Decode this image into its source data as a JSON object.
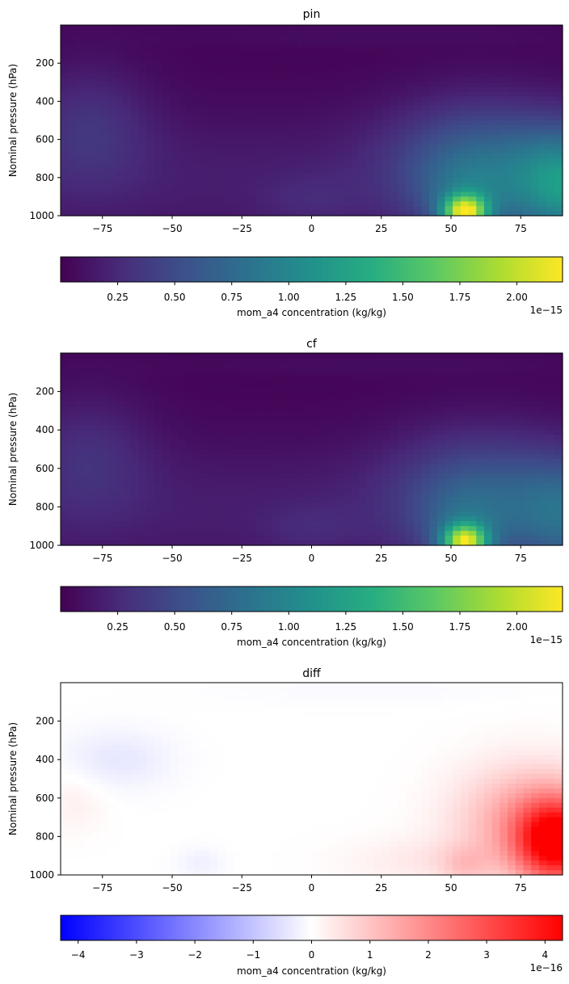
{
  "chart_data": [
    {
      "type": "heatmap",
      "title": "pin",
      "ylabel": "Nominal pressure (hPa)",
      "xlim": [
        -90,
        90
      ],
      "ylim_inverted": [
        1000,
        0
      ],
      "xticks": [
        "−75",
        "−50",
        "−25",
        "0",
        "25",
        "50",
        "75"
      ],
      "yticks": [
        "200",
        "400",
        "600",
        "800",
        "1000"
      ],
      "colormap": "viridis",
      "colorbar": {
        "label": "mom_a4 concentration (kg/kg)",
        "range": [
          0,
          2.2
        ],
        "ticks": [
          "0.25",
          "0.50",
          "0.75",
          "1.00",
          "1.25",
          "1.50",
          "1.75",
          "2.00"
        ],
        "offset": "1e−15"
      },
      "features": [
        {
          "lat": 55,
          "p": 980,
          "value": 2.15
        },
        {
          "lat": 88,
          "p": 850,
          "value": 0.9
        },
        {
          "lat": -80,
          "p": 520,
          "value": 0.25
        }
      ]
    },
    {
      "type": "heatmap",
      "title": "cf",
      "ylabel": "Nominal pressure (hPa)",
      "xlim": [
        -90,
        90
      ],
      "ylim_inverted": [
        1000,
        0
      ],
      "xticks": [
        "−75",
        "−50",
        "−25",
        "0",
        "25",
        "50",
        "75"
      ],
      "yticks": [
        "200",
        "400",
        "600",
        "800",
        "1000"
      ],
      "colormap": "viridis",
      "colorbar": {
        "label": "mom_a4 concentration (kg/kg)",
        "range": [
          0,
          2.2
        ],
        "ticks": [
          "0.25",
          "0.50",
          "0.75",
          "1.00",
          "1.25",
          "1.50",
          "1.75",
          "2.00"
        ],
        "offset": "1e−15"
      },
      "features": [
        {
          "lat": 55,
          "p": 980,
          "value": 2.1
        },
        {
          "lat": 88,
          "p": 850,
          "value": 0.55
        },
        {
          "lat": -80,
          "p": 520,
          "value": 0.22
        }
      ]
    },
    {
      "type": "heatmap",
      "title": "diff",
      "ylabel": "Nominal pressure (hPa)",
      "xlim": [
        -90,
        90
      ],
      "ylim_inverted": [
        1000,
        0
      ],
      "xticks": [
        "−75",
        "−50",
        "−25",
        "0",
        "25",
        "50",
        "75"
      ],
      "yticks": [
        "200",
        "400",
        "600",
        "800",
        "1000"
      ],
      "colormap": "bwr",
      "colorbar": {
        "label": "mom_a4 concentration (kg/kg)",
        "range": [
          -4.3,
          4.3
        ],
        "ticks": [
          "−4",
          "−3",
          "−2",
          "−1",
          "0",
          "1",
          "2",
          "3",
          "4"
        ],
        "offset": "1e−16"
      },
      "features": [
        {
          "lat": 88,
          "p": 830,
          "value": 4.1
        },
        {
          "lat": 55,
          "p": 950,
          "value": 0.6
        },
        {
          "lat": -70,
          "p": 400,
          "value": -0.4
        }
      ]
    }
  ]
}
